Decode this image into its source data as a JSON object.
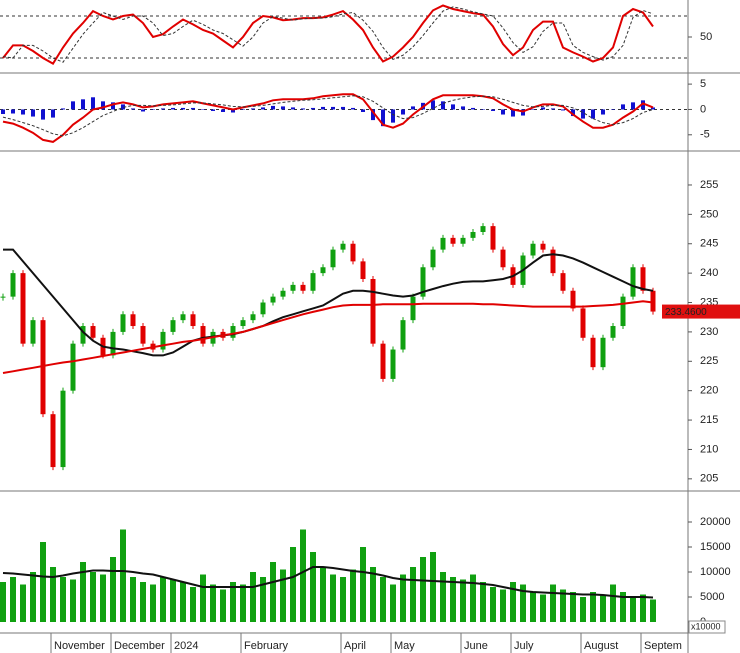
{
  "chart_data": [
    {
      "type": "line",
      "ylim": [
        0,
        100
      ],
      "yticks": [
        50
      ],
      "levels": [
        20,
        80
      ],
      "series": [
        {
          "type": "line",
          "color": "#e00000",
          "dashed": false,
          "values": [
            20,
            38,
            38,
            30,
            20,
            12,
            35,
            55,
            70,
            87,
            80,
            75,
            80,
            82,
            70,
            50,
            54,
            65,
            75,
            68,
            60,
            55,
            45,
            35,
            50,
            70,
            80,
            78,
            74,
            75,
            77,
            77,
            78,
            82,
            87,
            75,
            60,
            35,
            15,
            22,
            35,
            50,
            70,
            88,
            95,
            90,
            87,
            84,
            82,
            65,
            40,
            24,
            35,
            60,
            72,
            72,
            35,
            28,
            22,
            15,
            20,
            35,
            80,
            90,
            85,
            65
          ]
        },
        {
          "type": "line",
          "color": "#333333",
          "dashed": true,
          "values": [
            22,
            20,
            38,
            38,
            30,
            20,
            14,
            34,
            54,
            70,
            85,
            80,
            75,
            80,
            80,
            70,
            52,
            55,
            65,
            74,
            68,
            60,
            55,
            46,
            37,
            50,
            70,
            79,
            77,
            74,
            76,
            77,
            77,
            79,
            83,
            85,
            74,
            58,
            35,
            18,
            24,
            36,
            52,
            70,
            87,
            93,
            90,
            86,
            83,
            80,
            63,
            42,
            28,
            36,
            58,
            70,
            70,
            38,
            28,
            22,
            17,
            22,
            38,
            78,
            88,
            83
          ]
        }
      ]
    },
    {
      "type": "combo",
      "ylim": [
        -8,
        6.6
      ],
      "yticks": [
        -5,
        0,
        5
      ],
      "levels": [
        0
      ],
      "series": [
        {
          "type": "bar",
          "color": "#1010d0",
          "values": [
            -0.9,
            -0.8,
            -1.0,
            -1.4,
            -2.0,
            -1.6,
            0.2,
            1.6,
            2.0,
            2.4,
            1.6,
            1.4,
            1.0,
            0.2,
            -0.4,
            -0.1,
            0.2,
            0.3,
            0.3,
            0.3,
            -0.1,
            -0.3,
            -0.5,
            -0.6,
            -0.1,
            0.2,
            0.4,
            0.7,
            0.6,
            0.4,
            0.2,
            0.3,
            0.5,
            0.5,
            0.5,
            0.3,
            -0.5,
            -2.1,
            -3.3,
            -2.6,
            -1.0,
            0.6,
            1.3,
            1.8,
            1.6,
            1.0,
            0.6,
            0.3,
            0.0,
            -0.3,
            -1.0,
            -1.4,
            -1.2,
            -0.1,
            0.4,
            0.2,
            -0.2,
            -1.3,
            -1.8,
            -1.8,
            -1.0,
            0.0,
            1.0,
            1.4,
            1.8,
            0.4
          ]
        },
        {
          "type": "line",
          "color": "#e00000",
          "dashed": false,
          "values": [
            -2.4,
            -2.8,
            -3.6,
            -4.6,
            -6.0,
            -6.4,
            -5.0,
            -3.0,
            -1.6,
            0.0,
            0.4,
            1.0,
            1.4,
            1.0,
            0.4,
            0.6,
            1.0,
            1.2,
            1.4,
            1.6,
            1.2,
            0.8,
            0.4,
            0.0,
            0.4,
            0.8,
            1.2,
            1.8,
            2.0,
            2.0,
            2.0,
            2.2,
            2.6,
            2.8,
            3.0,
            3.0,
            2.0,
            -0.5,
            -3.0,
            -3.6,
            -2.8,
            -1.0,
            0.5,
            2.0,
            2.8,
            2.8,
            2.8,
            2.8,
            2.6,
            2.2,
            1.0,
            0.0,
            -0.4,
            0.4,
            1.0,
            1.0,
            0.6,
            -1.0,
            -2.4,
            -3.6,
            -3.6,
            -3.0,
            -1.6,
            -0.4,
            1.2,
            0.4
          ]
        },
        {
          "type": "line",
          "color": "#333333",
          "dashed": true,
          "values": [
            -1.5,
            -2.0,
            -2.6,
            -3.2,
            -4.0,
            -4.8,
            -5.2,
            -4.6,
            -3.6,
            -2.4,
            -1.2,
            -0.4,
            0.4,
            0.8,
            0.8,
            0.7,
            0.8,
            0.9,
            1.1,
            1.3,
            1.3,
            1.1,
            0.9,
            0.6,
            0.5,
            0.6,
            0.8,
            1.1,
            1.4,
            1.6,
            1.8,
            1.9,
            2.1,
            2.3,
            2.5,
            2.7,
            2.5,
            1.6,
            0.3,
            -1.0,
            -1.8,
            -1.6,
            -0.8,
            0.2,
            1.2,
            1.8,
            2.2,
            2.5,
            2.6,
            2.5,
            2.0,
            1.4,
            0.8,
            0.5,
            0.6,
            0.8,
            0.8,
            0.3,
            -0.6,
            -1.8,
            -2.6,
            -3.0,
            -2.6,
            -1.8,
            -0.6,
            0.0
          ]
        }
      ]
    },
    {
      "type": "candlestick",
      "ylim": [
        203.1,
        260.1
      ],
      "yticks": [
        205,
        210,
        215,
        220,
        225,
        230,
        235,
        240,
        245,
        250,
        255
      ],
      "last_label": "233.4600",
      "series": [
        {
          "type": "candle",
          "up_color": "#10a010",
          "down_color": "#e00000",
          "values": [
            236,
            240,
            228,
            232,
            216,
            207,
            220,
            228,
            231,
            229,
            226,
            230,
            233,
            231,
            228,
            227,
            230,
            232,
            233,
            231,
            228,
            230,
            229,
            231,
            232,
            233,
            235,
            236,
            237,
            238,
            237,
            240,
            241,
            244,
            245,
            242,
            239,
            228,
            222,
            227,
            232,
            236,
            241,
            244,
            246,
            245,
            246,
            247,
            248,
            244,
            241,
            238,
            243,
            245,
            244,
            240,
            237,
            234,
            229,
            224,
            229,
            231,
            236,
            241,
            237,
            233.46
          ]
        },
        {
          "type": "line",
          "color": "#111111",
          "dashed": false,
          "values": [
            244,
            244,
            242,
            240,
            238,
            236,
            234,
            232,
            230,
            228.5,
            227.5,
            227.2,
            227,
            226.7,
            226.4,
            226,
            226,
            226.5,
            227.5,
            228.5,
            229,
            229.2,
            229.4,
            229.6,
            230,
            230.5,
            231,
            231.8,
            232.5,
            233,
            233.5,
            234,
            234.5,
            235.5,
            236.5,
            237,
            237,
            236.8,
            236.5,
            236.2,
            236,
            236.2,
            236.8,
            237.3,
            237.8,
            238.2,
            238.5,
            238.6,
            238.6,
            238.8,
            239,
            239.5,
            240.5,
            241.8,
            243,
            243.2,
            243,
            242.5,
            241.8,
            241,
            240.2,
            239.4,
            238.6,
            237.8,
            237.3,
            237
          ]
        },
        {
          "type": "line",
          "color": "#e00000",
          "dashed": false,
          "values": [
            223.0,
            223.3,
            223.6,
            223.9,
            224.2,
            224.5,
            224.8,
            225.0,
            225.3,
            225.6,
            225.9,
            226.2,
            226.5,
            226.8,
            227.1,
            227.4,
            227.7,
            228.0,
            228.3,
            228.5,
            228.8,
            229.1,
            229.4,
            229.7,
            230.0,
            230.5,
            231.0,
            231.5,
            232.0,
            232.5,
            233.0,
            233.4,
            233.8,
            234.2,
            234.5,
            234.6,
            234.6,
            234.6,
            234.7,
            234.7,
            234.7,
            234.7,
            234.8,
            234.8,
            234.8,
            234.8,
            234.8,
            234.8,
            234.7,
            234.7,
            234.6,
            234.5,
            234.4,
            234.3,
            234.3,
            234.3,
            234.3,
            234.3,
            234.3,
            234.4,
            234.5,
            234.6,
            234.8,
            235.0,
            235.2,
            235.0
          ]
        }
      ]
    },
    {
      "type": "bar",
      "ylim": [
        -2000,
        25400
      ],
      "yticks": [
        0,
        5000,
        10000,
        15000,
        20000
      ],
      "unit_label": "x10000",
      "categories": [
        null,
        null,
        null,
        null,
        null,
        "November",
        null,
        null,
        null,
        null,
        null,
        "December",
        null,
        null,
        null,
        null,
        null,
        "2024",
        null,
        null,
        null,
        null,
        null,
        null,
        "February",
        null,
        null,
        null,
        null,
        null,
        null,
        null,
        null,
        null,
        "April",
        null,
        null,
        null,
        null,
        "May",
        null,
        null,
        null,
        null,
        null,
        null,
        "June",
        null,
        null,
        null,
        null,
        "July",
        null,
        null,
        null,
        null,
        null,
        null,
        "August",
        null,
        null,
        null,
        null,
        null,
        "Septem",
        null
      ],
      "series": [
        {
          "type": "bar",
          "color": "#10a010",
          "values": [
            8000,
            9000,
            7500,
            10000,
            16000,
            11000,
            9000,
            8500,
            12000,
            10000,
            9500,
            13000,
            18500,
            9000,
            8000,
            7500,
            9000,
            8500,
            8000,
            7000,
            9500,
            7500,
            6500,
            8000,
            7500,
            10000,
            9000,
            12000,
            10500,
            15000,
            18500,
            14000,
            11000,
            9500,
            9000,
            10500,
            15000,
            11000,
            9000,
            7500,
            9500,
            11000,
            13000,
            14000,
            10000,
            9000,
            8500,
            9500,
            8000,
            7000,
            6500,
            8000,
            7500,
            6000,
            5500,
            7500,
            6500,
            6000,
            5000,
            6000,
            5500,
            7500,
            6000,
            5000,
            5500,
            4500
          ]
        },
        {
          "type": "line",
          "color": "#111111",
          "dashed": false,
          "values": [
            9800,
            9700,
            9500,
            9300,
            9100,
            9000,
            9300,
            9700,
            10000,
            10300,
            10300,
            10200,
            10200,
            10000,
            9700,
            9500,
            9000,
            8500,
            8000,
            7500,
            7000,
            7000,
            7000,
            7000,
            7000,
            7000,
            7500,
            8000,
            8500,
            9000,
            10000,
            11000,
            11000,
            10800,
            10500,
            10200,
            10000,
            9700,
            9300,
            8800,
            8500,
            8400,
            8300,
            8200,
            8100,
            8000,
            7900,
            7800,
            7600,
            7400,
            7000,
            6600,
            6200,
            6000,
            5900,
            5800,
            5700,
            5600,
            5500,
            5500,
            5400,
            5200,
            5000,
            5000,
            5000,
            4900
          ]
        }
      ]
    }
  ]
}
